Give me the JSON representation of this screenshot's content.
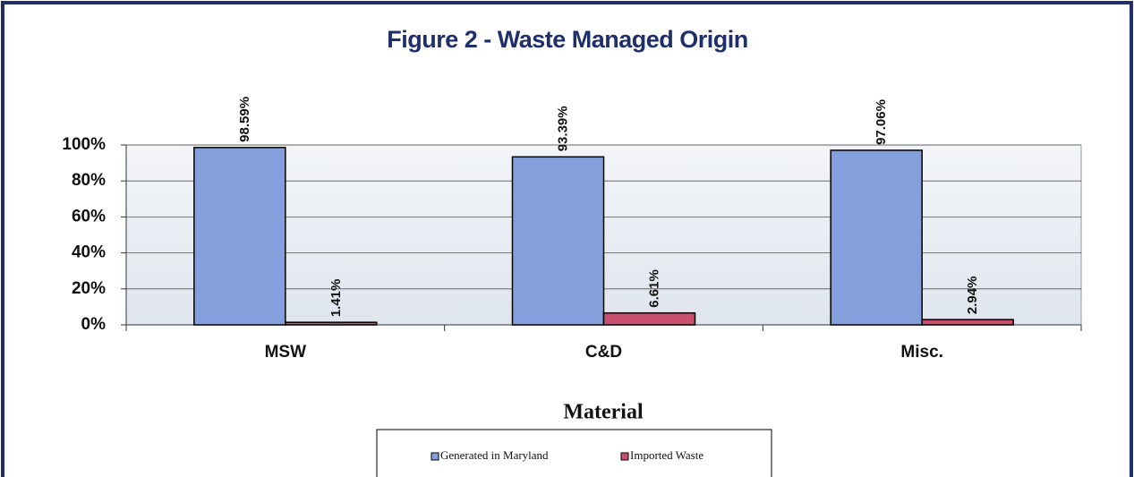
{
  "chart_data": {
    "type": "bar",
    "title": "Figure 2 - Waste Managed Origin",
    "x_label": "Material",
    "categories": [
      "MSW",
      "C&D",
      "Misc."
    ],
    "series": [
      {
        "name": "Generated in Maryland",
        "color": "#839fdc",
        "values": [
          98.59,
          93.39,
          97.06
        ],
        "value_labels": [
          "98.59%",
          "93.39%",
          "97.06%"
        ]
      },
      {
        "name": "Imported Waste",
        "color": "#c94f6f",
        "values": [
          1.41,
          6.61,
          2.94
        ],
        "value_labels": [
          "1.41%",
          "6.61%",
          "2.94%"
        ]
      }
    ],
    "ylim": [
      0,
      100
    ],
    "yticks": [
      {
        "value": 0,
        "label": "0%"
      },
      {
        "value": 20,
        "label": "20%"
      },
      {
        "value": 40,
        "label": "40%"
      },
      {
        "value": 60,
        "label": "60%"
      },
      {
        "value": 80,
        "label": "80%"
      },
      {
        "value": 100,
        "label": "100%"
      }
    ],
    "grid": true,
    "legend": "bottom"
  }
}
